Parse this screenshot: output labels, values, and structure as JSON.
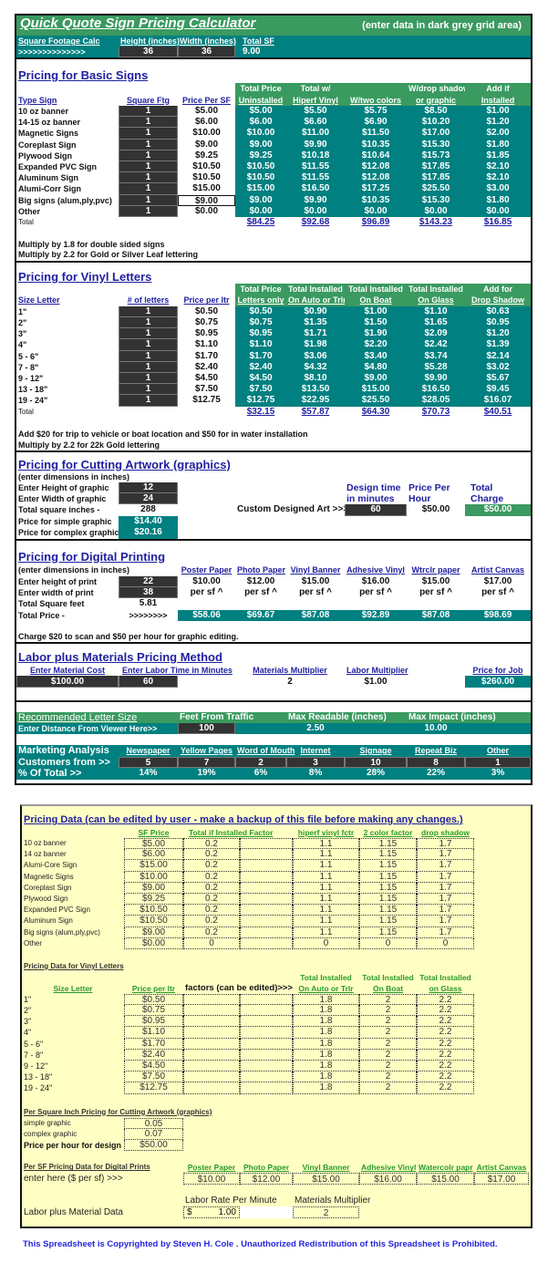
{
  "colors": {
    "green": "#3a9a60",
    "teal": "#008080",
    "input_dark": "#333333",
    "link_blue": "#2020a0",
    "data_bg": "#ffffc4"
  },
  "header": {
    "title": "Quick Quote Sign Pricing Calculator",
    "note": "(enter data in dark grey grid area)",
    "sqft_label": "Square Footage Calc",
    "arrows": ">>>>>>>>>>>>>>",
    "height_label": "Height (inches)",
    "width_label": "Width (inches)",
    "total_label": "Total SF",
    "height": "36",
    "width": "36",
    "total": "9.00"
  },
  "basic": {
    "title": "Pricing for Basic Signs",
    "headers": {
      "type": "Type Sign",
      "sqft": "Square Ftg",
      "price": "Price Per SF"
    },
    "columns": [
      [
        "Total Price",
        "Uninstalled"
      ],
      [
        "Total w/",
        "Hiperf Vinyl"
      ],
      [
        "",
        "W/two colors"
      ],
      [
        "W/drop shadow",
        "or graphic"
      ],
      [
        "Add if",
        "Installed"
      ]
    ],
    "rows": [
      {
        "name": "10 oz banner",
        "sqft": "1",
        "price": "$5.00",
        "vals": [
          "$5.00",
          "$5.50",
          "$5.75",
          "$8.50",
          "$1.00"
        ]
      },
      {
        "name": "14-15 oz banner",
        "sqft": "1",
        "price": "$6.00",
        "vals": [
          "$6.00",
          "$6.60",
          "$6.90",
          "$10.20",
          "$1.20"
        ]
      },
      {
        "name": "Magnetic Signs",
        "sqft": "1",
        "price": "$10.00",
        "vals": [
          "$10.00",
          "$11.00",
          "$11.50",
          "$17.00",
          "$2.00"
        ]
      },
      {
        "name": "Coreplast Sign",
        "sqft": "1",
        "price": "$9.00",
        "vals": [
          "$9.00",
          "$9.90",
          "$10.35",
          "$15.30",
          "$1.80"
        ]
      },
      {
        "name": "Plywood Sign",
        "sqft": "1",
        "price": "$9.25",
        "vals": [
          "$9.25",
          "$10.18",
          "$10.64",
          "$15.73",
          "$1.85"
        ]
      },
      {
        "name": "Expanded PVC Sign",
        "sqft": "1",
        "price": "$10.50",
        "vals": [
          "$10.50",
          "$11.55",
          "$12.08",
          "$17.85",
          "$2.10"
        ]
      },
      {
        "name": "Aluminum Sign",
        "sqft": "1",
        "price": "$10.50",
        "vals": [
          "$10.50",
          "$11.55",
          "$12.08",
          "$17.85",
          "$2.10"
        ]
      },
      {
        "name": "Alumi-Corr Sign",
        "sqft": "1",
        "price": "$15.00",
        "vals": [
          "$15.00",
          "$16.50",
          "$17.25",
          "$25.50",
          "$3.00"
        ]
      },
      {
        "name": "Big signs (alum,ply,pvc)",
        "sqft": "1",
        "price": "$9.00",
        "vals": [
          "$9.00",
          "$9.90",
          "$10.35",
          "$15.30",
          "$1.80"
        ]
      },
      {
        "name": "Other",
        "sqft": "1",
        "price": "$0.00",
        "vals": [
          "$0.00",
          "$0.00",
          "$0.00",
          "$0.00",
          "$0.00"
        ]
      }
    ],
    "total_label": "Total",
    "totals": [
      "$84.25",
      "$92.68",
      "$96.89",
      "$143.23",
      "$16.85"
    ],
    "notes": [
      "Multiply by  1.8 for double sided signs",
      "Multiply by 2.2 for Gold or Silver Leaf lettering"
    ]
  },
  "vinyl": {
    "title": "Pricing for Vinyl Letters",
    "headers": {
      "size": "Size Letter",
      "count": "# of letters",
      "price": "Price per ltr"
    },
    "columns": [
      [
        "Total Price",
        "Letters only"
      ],
      [
        "Total Installed",
        "On Auto or Trlr"
      ],
      [
        "Total Installed",
        "On Boat"
      ],
      [
        "Total Installed",
        "On Glass"
      ],
      [
        "Add for",
        "Drop Shadow"
      ]
    ],
    "rows": [
      {
        "name": "1\"",
        "count": "1",
        "price": "$0.50",
        "vals": [
          "$0.50",
          "$0.90",
          "$1.00",
          "$1.10",
          "$0.63"
        ]
      },
      {
        "name": "2\"",
        "count": "1",
        "price": "$0.75",
        "vals": [
          "$0.75",
          "$1.35",
          "$1.50",
          "$1.65",
          "$0.95"
        ]
      },
      {
        "name": "3\"",
        "count": "1",
        "price": "$0.95",
        "vals": [
          "$0.95",
          "$1.71",
          "$1.90",
          "$2.09",
          "$1.20"
        ]
      },
      {
        "name": "4\"",
        "count": "1",
        "price": "$1.10",
        "vals": [
          "$1.10",
          "$1.98",
          "$2.20",
          "$2.42",
          "$1.39"
        ]
      },
      {
        "name": "5 - 6\"",
        "count": "1",
        "price": "$1.70",
        "vals": [
          "$1.70",
          "$3.06",
          "$3.40",
          "$3.74",
          "$2.14"
        ]
      },
      {
        "name": "7 - 8\"",
        "count": "1",
        "price": "$2.40",
        "vals": [
          "$2.40",
          "$4.32",
          "$4.80",
          "$5.28",
          "$3.02"
        ]
      },
      {
        "name": "9 - 12\"",
        "count": "1",
        "price": "$4.50",
        "vals": [
          "$4.50",
          "$8.10",
          "$9.00",
          "$9.90",
          "$5.67"
        ]
      },
      {
        "name": "13 - 18\"",
        "count": "1",
        "price": "$7.50",
        "vals": [
          "$7.50",
          "$13.50",
          "$15.00",
          "$16.50",
          "$9.45"
        ]
      },
      {
        "name": "19 - 24\"",
        "count": "1",
        "price": "$12.75",
        "vals": [
          "$12.75",
          "$22.95",
          "$25.50",
          "$28.05",
          "$16.07"
        ]
      }
    ],
    "total_label": "Total",
    "totals": [
      "$32.15",
      "$57.87",
      "$64.30",
      "$70.73",
      "$40.51"
    ],
    "notes": [
      "Add $20 for trip to vehicle or boat location and $50 for in water installation",
      "Multiply by 2.2 for 22k Gold lettering"
    ]
  },
  "cutting": {
    "title": "Pricing for Cutting Artwork (graphics)",
    "note": "(enter dimensions in inches)",
    "height_label": "Enter Height of graphic",
    "height": "12",
    "width_label": "Enter Width of graphic",
    "width": "24",
    "total_label": "Total square inches -",
    "total": "288",
    "simple_label": "Price for simple graphic",
    "simple": "$14.40",
    "complex_label": "Price for complex graphic",
    "complex": "$20.16",
    "custom_label": "Custom Designed Art >>>",
    "design_time_label": [
      "Design time",
      "in minutes"
    ],
    "price_hour_label": [
      "Price Per",
      "Hour"
    ],
    "total_charge_label": [
      "Total",
      "Charge"
    ],
    "design_time": "60",
    "price_hour": "$50.00",
    "total_charge": "$50.00"
  },
  "digital": {
    "title": "Pricing for Digital Printing",
    "note": "(enter dimensions in inches)",
    "height_label": "Enter height of print",
    "height": "22",
    "width_label": "Enter width of print",
    "width": "38",
    "sqft_label": "Total Square feet",
    "sqft": "5.81",
    "total_label": "Total Price -",
    "arrows": ">>>>>>>>",
    "unit": "per sf ^",
    "materials": [
      {
        "name": "Poster Paper",
        "price": "$10.00",
        "total": "$58.06"
      },
      {
        "name": "Photo Paper",
        "price": "$12.00",
        "total": "$69.67"
      },
      {
        "name": "Vinyl Banner",
        "price": "$15.00",
        "total": "$87.08"
      },
      {
        "name": "Adhesive Vinyl",
        "price": "$16.00",
        "total": "$92.89"
      },
      {
        "name": "Wtrclr paper",
        "price": "$15.00",
        "total": "$87.08"
      },
      {
        "name": "Artist Canvas",
        "price": "$17.00",
        "total": "$98.69"
      }
    ],
    "footnote": "Charge $20 to scan and $50 per hour for graphic editing."
  },
  "labor": {
    "title": "Labor plus Materials Pricing Method",
    "material_label": "Enter Material Cost",
    "material": "$100.00",
    "time_label": "Enter Labor Time in Minutes",
    "time": "60",
    "mat_mult_label": "Materials Multiplier",
    "mat_mult": "2",
    "labor_mult_label": "Labor Multiplier",
    "labor_mult": "$1.00",
    "price_label": "Price for Job",
    "price": "$260.00"
  },
  "letter": {
    "title": "Recommended Letter Size",
    "feet_label": "Feet From Traffic",
    "readable_label": "Max Readable (inches)",
    "impact_label": "Max Impact (inches)",
    "enter_label": "Enter Distance From Viewer Here>>",
    "feet": "100",
    "readable": "2.50",
    "impact": "10.00"
  },
  "marketing": {
    "title": "Marketing Analysis",
    "customers_label": "Customers from >>",
    "pct_label": "% Of Total >>",
    "channels": [
      {
        "name": "Newspaper",
        "count": "5",
        "pct": "14%"
      },
      {
        "name": "Yellow Pages",
        "count": "7",
        "pct": "19%"
      },
      {
        "name": "Word of Mouth",
        "count": "2",
        "pct": "6%"
      },
      {
        "name": "Internet",
        "count": "3",
        "pct": "8%"
      },
      {
        "name": "Signage",
        "count": "10",
        "pct": "28%"
      },
      {
        "name": "Repeat Biz",
        "count": "8",
        "pct": "22%"
      },
      {
        "name": "Other",
        "count": "1",
        "pct": "3%"
      }
    ]
  },
  "pricing_data": {
    "title": "Pricing Data (can be edited by user - make a backup of this file before making any changes.)",
    "headers": [
      "SF Price",
      "Total if Installed Factor",
      "hiperf vinyl fctr",
      "2 color factor",
      "drop shadow"
    ],
    "rows": [
      {
        "name": "10 oz banner",
        "vals": [
          "$5.00",
          "0.2",
          "1.1",
          "1.15",
          "1.7"
        ]
      },
      {
        "name": "14 oz banner",
        "vals": [
          "$6.00",
          "0.2",
          "1.1",
          "1.15",
          "1.7"
        ]
      },
      {
        "name": "Alumi-Core Sign",
        "vals": [
          "$15.00",
          "0.2",
          "1.1",
          "1.15",
          "1.7"
        ]
      },
      {
        "name": "Magnetic Signs",
        "vals": [
          "$10.00",
          "0.2",
          "1.1",
          "1.15",
          "1.7"
        ]
      },
      {
        "name": "Coreplast Sign",
        "vals": [
          "$9.00",
          "0.2",
          "1.1",
          "1.15",
          "1.7"
        ]
      },
      {
        "name": "Plywood Sign",
        "vals": [
          "$9.25",
          "0.2",
          "1.1",
          "1.15",
          "1.7"
        ]
      },
      {
        "name": "Expanded PVC Sign",
        "vals": [
          "$10.50",
          "0.2",
          "1.1",
          "1.15",
          "1.7"
        ]
      },
      {
        "name": "Aluminum Sign",
        "vals": [
          "$10.50",
          "0.2",
          "1.1",
          "1.15",
          "1.7"
        ]
      },
      {
        "name": "Big signs (alum,ply,pvc)",
        "vals": [
          "$9.00",
          "0.2",
          "1.1",
          "1.15",
          "1.7"
        ]
      },
      {
        "name": "Other",
        "vals": [
          "$0.00",
          "0",
          "0",
          "0",
          "0"
        ]
      }
    ]
  },
  "vinyl_data": {
    "title": "Pricing Data for Vinyl Letters",
    "size_label": "Size Letter",
    "price_label": "Price per ltr",
    "factors_label": "factors (can be edited)>>>",
    "group_label": "Total Installed",
    "columns": [
      "On Auto or Trlr",
      "On Boat",
      "on Glass"
    ],
    "rows": [
      {
        "name": "1\"",
        "vals": [
          "$0.50",
          "1.8",
          "2",
          "2.2"
        ]
      },
      {
        "name": "2\"",
        "vals": [
          "$0.75",
          "1.8",
          "2",
          "2.2"
        ]
      },
      {
        "name": "3\"",
        "vals": [
          "$0.95",
          "1.8",
          "2",
          "2.2"
        ]
      },
      {
        "name": "4\"",
        "vals": [
          "$1.10",
          "1.8",
          "2",
          "2.2"
        ]
      },
      {
        "name": "5 - 6\"",
        "vals": [
          "$1.70",
          "1.8",
          "2",
          "2.2"
        ]
      },
      {
        "name": "7 - 8\"",
        "vals": [
          "$2.40",
          "1.8",
          "2",
          "2.2"
        ]
      },
      {
        "name": "9 - 12\"",
        "vals": [
          "$4.50",
          "1.8",
          "2",
          "2.2"
        ]
      },
      {
        "name": "13 - 18\"",
        "vals": [
          "$7.50",
          "1.8",
          "2",
          "2.2"
        ]
      },
      {
        "name": "19 - 24\"",
        "vals": [
          "$12.75",
          "1.8",
          "2",
          "2.2"
        ]
      }
    ]
  },
  "cutting_data": {
    "title": "Per Square Inch Pricing for Cutting Artwork (graphics)",
    "simple_label": "simple graphic",
    "simple": "0.05",
    "complex_label": "complex graphic",
    "complex": "0.07",
    "hour_label": "Price per hour for design",
    "hour": "$50.00"
  },
  "digital_data": {
    "title": "Per SF Pricing Data for Digital Prints",
    "enter_label": "enter here ($ per sf) >>>",
    "materials": [
      {
        "name": "Poster Paper",
        "price": "$10.00"
      },
      {
        "name": "Photo Paper",
        "price": "$12.00"
      },
      {
        "name": "Vinyl Banner",
        "price": "$15.00"
      },
      {
        "name": "Adhesive Vinyl",
        "price": "$16.00"
      },
      {
        "name": "Watercolr papr",
        "price": "$15.00"
      },
      {
        "name": "Artist Canvas",
        "price": "$17.00"
      }
    ]
  },
  "labor_data": {
    "label": "Labor plus Material Data",
    "rate_label": "Labor Rate Per Minute",
    "rate_currency": "$",
    "rate": "1.00",
    "mult_label": "Materials Multiplier",
    "mult": "2"
  },
  "copyright": "This Spreadsheet is Copyrighted by  Steven H. Cole .  Unauthorized Redistribution of this Spreadsheet is Prohibited."
}
